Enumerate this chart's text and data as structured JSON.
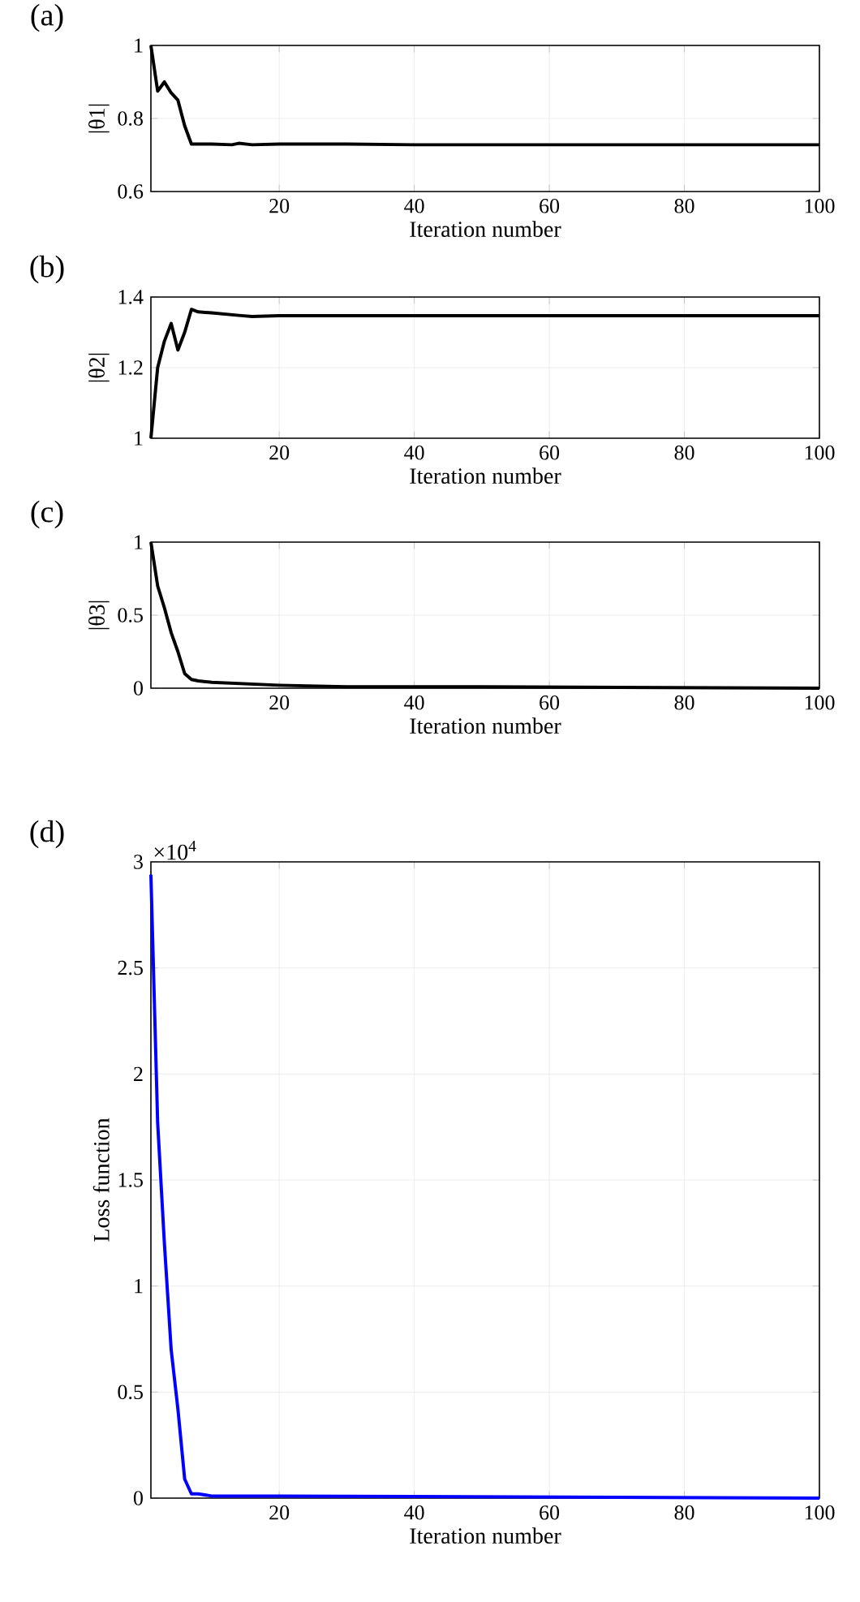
{
  "chart_data": [
    {
      "type": "line",
      "title": "(a)",
      "xlabel": "Iteration number",
      "ylabel": "|θ1|",
      "xlim": [
        1,
        100
      ],
      "ylim": [
        0.6,
        1
      ],
      "xticks": [
        20,
        40,
        60,
        80,
        100
      ],
      "yticks": [
        0.6,
        0.8,
        1
      ],
      "grid": true,
      "color": "#000000",
      "x": [
        1,
        2,
        3,
        4,
        5,
        6,
        7,
        10,
        13,
        14,
        16,
        20,
        30,
        40,
        100
      ],
      "values": [
        1.0,
        0.875,
        0.9,
        0.87,
        0.85,
        0.78,
        0.73,
        0.73,
        0.728,
        0.732,
        0.728,
        0.73,
        0.73,
        0.728,
        0.728
      ]
    },
    {
      "type": "line",
      "title": "(b)",
      "xlabel": "Iteration number",
      "ylabel": "|θ2|",
      "xlim": [
        1,
        100
      ],
      "ylim": [
        1,
        1.4
      ],
      "xticks": [
        20,
        40,
        60,
        80,
        100
      ],
      "yticks": [
        1,
        1.2,
        1.4
      ],
      "grid": true,
      "color": "#000000",
      "x": [
        1,
        2,
        3,
        4,
        5,
        6,
        7,
        8,
        10,
        14,
        16,
        20,
        100
      ],
      "values": [
        1.0,
        1.2,
        1.275,
        1.325,
        1.25,
        1.3,
        1.365,
        1.358,
        1.355,
        1.348,
        1.345,
        1.347,
        1.347
      ]
    },
    {
      "type": "line",
      "title": "(c)",
      "xlabel": "Iteration number",
      "ylabel": "|θ3|",
      "xlim": [
        1,
        100
      ],
      "ylim": [
        0,
        1
      ],
      "xticks": [
        20,
        40,
        60,
        80,
        100
      ],
      "yticks": [
        0,
        0.5,
        1
      ],
      "grid": true,
      "color": "#000000",
      "x": [
        1,
        2,
        3,
        4,
        5,
        6,
        7,
        8,
        10,
        15,
        20,
        30,
        50,
        100
      ],
      "values": [
        1.0,
        0.7,
        0.55,
        0.38,
        0.25,
        0.1,
        0.06,
        0.05,
        0.04,
        0.03,
        0.02,
        0.01,
        0.01,
        0.0
      ]
    },
    {
      "type": "line",
      "title": "(d)",
      "xlabel": "Iteration number",
      "ylabel": "Loss function",
      "annotations": [
        "×10$^{4}$"
      ],
      "xlim": [
        1,
        100
      ],
      "ylim": [
        0,
        3
      ],
      "xticks": [
        20,
        40,
        60,
        80,
        100
      ],
      "yticks": [
        0,
        0.5,
        1,
        1.5,
        2,
        2.5,
        3
      ],
      "grid": true,
      "color": "#0000ff",
      "x": [
        1,
        2,
        3,
        4,
        5,
        6,
        7,
        8,
        10,
        20,
        100
      ],
      "values": [
        2.94,
        1.77,
        1.2,
        0.7,
        0.42,
        0.09,
        0.02,
        0.02,
        0.01,
        0.01,
        0.0
      ]
    }
  ]
}
